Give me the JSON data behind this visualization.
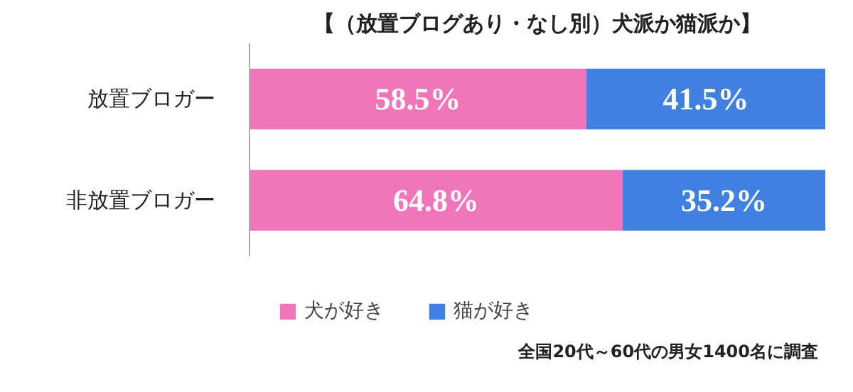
{
  "chart_data": {
    "type": "bar",
    "orientation": "horizontal",
    "stacked": true,
    "title": "【（放置ブログあり・なし別）犬派か猫派か】",
    "categories": [
      "放置ブロガー",
      "非放置ブロガー"
    ],
    "series": [
      {
        "name": "犬が好き",
        "color": "#f075b9",
        "values": [
          58.5,
          64.8
        ],
        "value_labels": [
          "58.5%",
          "64.8%"
        ]
      },
      {
        "name": "猫が好き",
        "color": "#3f80e0",
        "values": [
          41.5,
          35.2
        ],
        "value_labels": [
          "41.5%",
          "35.2%"
        ]
      }
    ],
    "legend": "bottom",
    "grid": false,
    "tick_labels": "y",
    "annotations": [
      "全国20代～60代の男女1400名に調査"
    ]
  }
}
